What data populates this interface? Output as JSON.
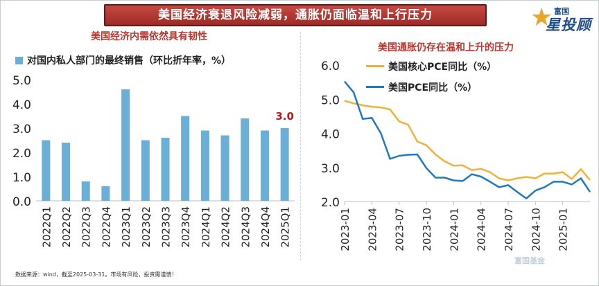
{
  "banner": "美国经济衰退风险减弱，通胀仍面临温和上行压力",
  "logo": {
    "top": "富国",
    "main": "星投顾"
  },
  "footer": "数据来源：wind，截至2025-03-31。市场有风险，投资需谨慎！",
  "watermark": "富国基金",
  "colors": {
    "bar": "#6baed6",
    "core": "#f2b134",
    "pce": "#1e78c2",
    "title_red": "#b8372f",
    "highlight": "#c0171c"
  },
  "chart_data": [
    {
      "type": "bar",
      "title": "美国经济内需依然具有韧性",
      "legend": [
        "对国内私人部门的最终销售（环比折年率，%）"
      ],
      "categories": [
        "2022Q1",
        "2022Q2",
        "2022Q3",
        "2022Q4",
        "2023Q1",
        "2023Q2",
        "2023Q3",
        "2023Q4",
        "2024Q1",
        "2024Q2",
        "2024Q3",
        "2024Q4",
        "2025Q1"
      ],
      "values": [
        2.5,
        2.4,
        0.8,
        0.6,
        4.6,
        2.5,
        2.6,
        3.5,
        2.9,
        2.7,
        3.4,
        2.9,
        3.0
      ],
      "annotation": {
        "label": "3.0",
        "category": "2025Q1"
      },
      "ylim": [
        0,
        5
      ],
      "yticks": [
        "0.0",
        "1.0",
        "2.0",
        "3.0",
        "4.0",
        "5.0"
      ]
    },
    {
      "type": "line",
      "title": "美国通胀仍存在温和上升的压力",
      "x_ticks": [
        "2023-01",
        "2023-04",
        "2023-07",
        "2023-10",
        "2024-01",
        "2024-04",
        "2024-07",
        "2024-10",
        "2025-01"
      ],
      "x_start": "2023-01",
      "ylim": [
        2,
        6
      ],
      "yticks": [
        "2.0",
        "3.0",
        "4.0",
        "5.0",
        "6.0"
      ],
      "series": [
        {
          "name": "美国核心PCE同比（%）",
          "values": [
            4.95,
            4.88,
            4.82,
            4.78,
            4.76,
            4.7,
            4.35,
            4.25,
            3.76,
            3.65,
            3.38,
            3.18,
            3.05,
            3.06,
            2.92,
            2.96,
            2.86,
            2.68,
            2.62,
            2.68,
            2.72,
            2.68,
            2.82,
            2.82,
            2.86,
            2.66,
            2.95,
            2.63
          ]
        },
        {
          "name": "美国PCE同比（%）",
          "values": [
            5.52,
            5.2,
            4.42,
            4.45,
            4.0,
            3.25,
            3.34,
            3.37,
            3.38,
            2.98,
            2.7,
            2.7,
            2.62,
            2.6,
            2.8,
            2.73,
            2.58,
            2.42,
            2.48,
            2.28,
            2.09,
            2.32,
            2.42,
            2.58,
            2.58,
            2.5,
            2.68,
            2.28
          ]
        }
      ]
    }
  ]
}
